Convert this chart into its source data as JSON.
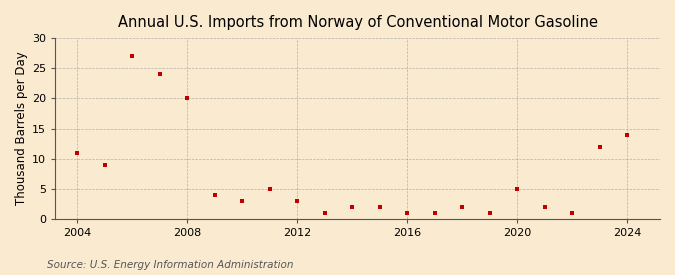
{
  "title": "Annual U.S. Imports from Norway of Conventional Motor Gasoline",
  "ylabel": "Thousand Barrels per Day",
  "source": "Source: U.S. Energy Information Administration",
  "years": [
    2004,
    2005,
    2006,
    2007,
    2008,
    2009,
    2010,
    2011,
    2012,
    2013,
    2014,
    2015,
    2016,
    2017,
    2018,
    2019,
    2020,
    2021,
    2022,
    2023,
    2024
  ],
  "values": [
    11,
    9,
    27,
    24,
    20,
    4,
    3,
    5,
    3,
    1,
    2,
    2,
    1,
    1,
    2,
    1,
    5,
    2,
    1,
    12,
    14
  ],
  "marker_color": "#c00000",
  "background_color": "#faebd0",
  "plot_bg_color": "#faebd0",
  "grid_color": "#999999",
  "ylim": [
    0,
    30
  ],
  "yticks": [
    0,
    5,
    10,
    15,
    20,
    25,
    30
  ],
  "xlim": [
    2003.2,
    2025.2
  ],
  "xticks": [
    2004,
    2008,
    2012,
    2016,
    2020,
    2024
  ],
  "title_fontsize": 10.5,
  "label_fontsize": 8.5,
  "tick_fontsize": 8,
  "source_fontsize": 7.5
}
